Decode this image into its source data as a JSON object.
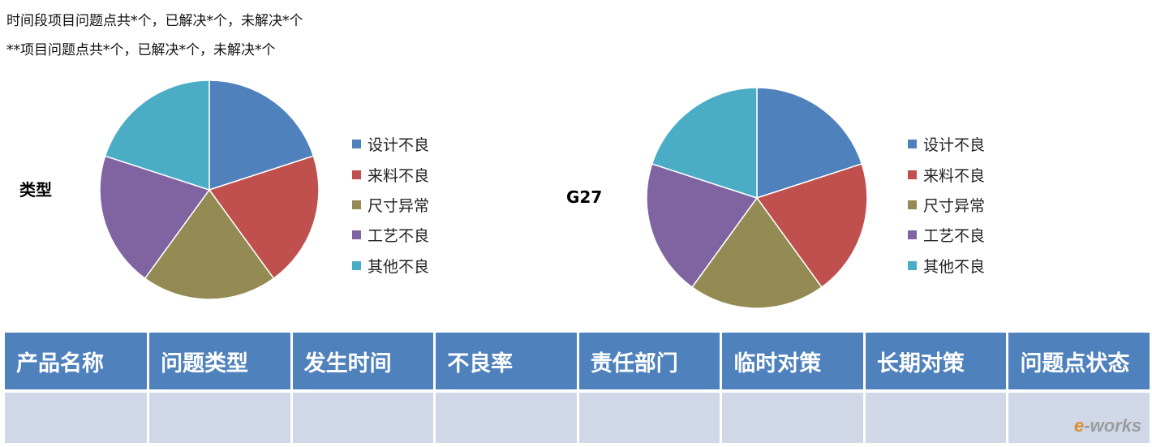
{
  "summary": {
    "line1": "时间段项目问题点共*个，已解决*个，未解决*个",
    "line2": "**项目问题点共*个，已解决*个，未解决*个"
  },
  "chart_data": [
    {
      "type": "pie",
      "title": "类型",
      "categories": [
        "设计不良",
        "来料不良",
        "尺寸异常",
        "工艺不良",
        "其他不良"
      ],
      "values": [
        20,
        20,
        20,
        20,
        20
      ],
      "colors": [
        "#4f81bd",
        "#c0504d",
        "#948a54",
        "#8064a2",
        "#4bacc6"
      ],
      "legend": "right"
    },
    {
      "type": "pie",
      "title": "G27",
      "categories": [
        "设计不良",
        "来料不良",
        "尺寸异常",
        "工艺不良",
        "其他不良"
      ],
      "values": [
        20,
        20,
        20,
        20,
        20
      ],
      "colors": [
        "#4f81bd",
        "#c0504d",
        "#948a54",
        "#8064a2",
        "#4bacc6"
      ],
      "legend": "right"
    }
  ],
  "table": {
    "headers": [
      "产品名称",
      "问题类型",
      "发生时间",
      "不良率",
      "责任部门",
      "临时对策",
      "长期对策",
      "问题点状态"
    ],
    "rows": [
      [
        "",
        "",
        "",
        "",
        "",
        "",
        "",
        ""
      ]
    ],
    "header_color": "#4f81bd",
    "row_color": "#d0d8e8"
  },
  "watermark": {
    "prefix": "e",
    "suffix": "-works"
  }
}
